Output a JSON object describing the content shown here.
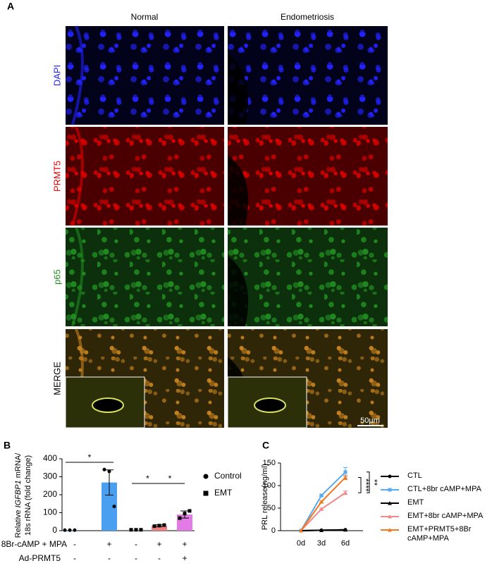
{
  "panel_labels": [
    "A",
    "B",
    "C"
  ],
  "panel_a": {
    "columns": [
      "Normal",
      "Endometriosis"
    ],
    "rows": [
      {
        "label": "DAPI",
        "color": "#2222ff"
      },
      {
        "label": "PRMT5",
        "color": "#e00000"
      },
      {
        "label": "p65",
        "color": "#1f8a1f"
      },
      {
        "label": "MERGE",
        "color": "#000000"
      }
    ],
    "scale_bar": "50µm"
  },
  "chart_data": [
    {
      "type": "bar",
      "y_label": [
        "Relative ",
        "IGFBP1",
        " mRNA/",
        "18s rRNA (fold change)"
      ],
      "categories": [
        null,
        null,
        null,
        null,
        null
      ],
      "values": [
        3,
        268,
        5,
        28,
        90
      ],
      "errors": [
        null,
        70,
        null,
        5,
        20
      ],
      "points": [
        [
          3,
          3,
          3
        ],
        [
          340,
          330,
          135
        ],
        [
          5,
          5,
          5
        ],
        [
          25,
          28,
          31
        ],
        [
          70,
          95,
          110
        ]
      ],
      "point_markers": [
        "circle",
        "circle",
        "square",
        "square",
        "square"
      ],
      "colors": [
        "#4a9ff0",
        "#4a9ff0",
        "#9a9a9a",
        "#f08080",
        "#e37be6"
      ],
      "ylim": [
        0,
        400
      ],
      "yticks": [
        0,
        100,
        200,
        300,
        400
      ],
      "legend": [
        {
          "name": "Control",
          "marker": "circle"
        },
        {
          "name": "EMT",
          "marker": "square"
        }
      ],
      "significance": [
        {
          "from": 0,
          "to": 1,
          "label": "*"
        },
        {
          "from": 2,
          "to": 3,
          "label": "*"
        },
        {
          "from": 3,
          "to": 4,
          "label": "*"
        }
      ],
      "treatments": [
        {
          "name": "8Br-cAMP + MPA",
          "signs": [
            "-",
            "+",
            "-",
            "+",
            "+"
          ]
        },
        {
          "name": "Ad-PRMT5",
          "signs": [
            "-",
            "-",
            "-",
            "-",
            "+"
          ]
        }
      ]
    },
    {
      "type": "line",
      "y_label": "PRL release(ng/ml)",
      "categories": [
        "0d",
        "3d",
        "6d"
      ],
      "ylim": [
        0,
        150
      ],
      "yticks": [
        0,
        50,
        100,
        150
      ],
      "series": [
        {
          "name": "CTL",
          "color": "#000000",
          "marker": "circle",
          "values": [
            0,
            1,
            2
          ],
          "errors": [
            null,
            null,
            null
          ]
        },
        {
          "name": "CTL+8br cAMP+MPA",
          "color": "#5aaaf0",
          "marker": "square",
          "values": [
            0,
            78,
            130
          ],
          "errors": [
            null,
            2,
            10
          ]
        },
        {
          "name": "EMT",
          "color": "#000000",
          "marker": "triangle",
          "values": [
            0,
            1,
            2
          ],
          "errors": [
            null,
            null,
            null
          ]
        },
        {
          "name": "EMT+8br cAMP+MPA",
          "color": "#f08a8a",
          "marker": "triangle",
          "values": [
            0,
            48,
            84
          ],
          "errors": [
            null,
            2,
            4
          ]
        },
        {
          "name": "EMT+PRMT5+8Br cAMP+MPA",
          "color": "#f07820",
          "marker": "triangle",
          "values": [
            0,
            64,
            118
          ],
          "errors": [
            null,
            2,
            5
          ]
        }
      ],
      "significance": [
        {
          "from": 1,
          "to": 3,
          "label": "**"
        },
        {
          "from": 4,
          "to": 3,
          "label": "****"
        }
      ]
    }
  ]
}
